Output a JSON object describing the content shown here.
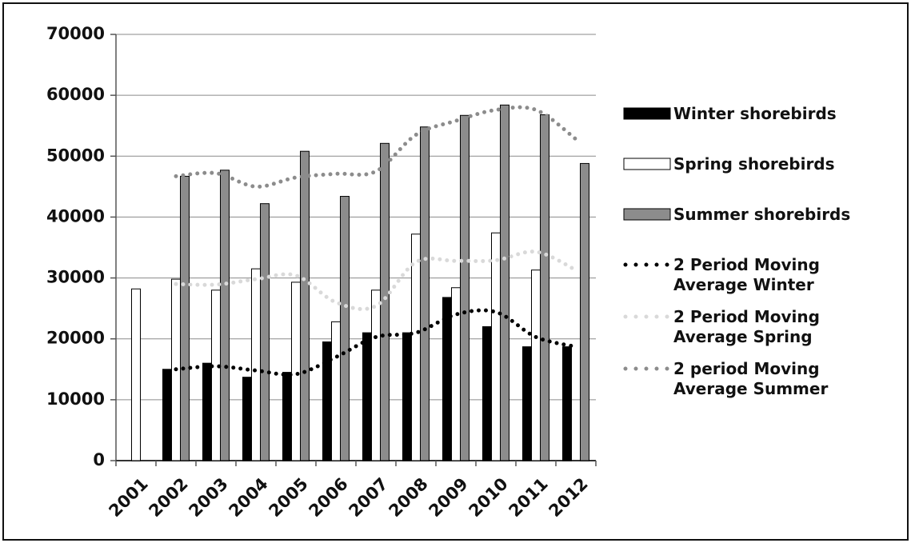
{
  "chart_data": {
    "type": "bar",
    "categories": [
      "2001",
      "2002",
      "2003",
      "2004",
      "2005",
      "2006",
      "2007",
      "2008",
      "2009",
      "2010",
      "2011",
      "2012"
    ],
    "series": [
      {
        "name": "Winter shorebirds",
        "color": "#000000",
        "values": [
          null,
          15000,
          16000,
          13700,
          14500,
          19500,
          21000,
          21000,
          26800,
          22000,
          18700,
          18700
        ]
      },
      {
        "name": "Spring shorebirds",
        "color": "#ffffff",
        "values": [
          28200,
          29800,
          28000,
          31500,
          29300,
          22800,
          28000,
          37200,
          28400,
          37400,
          31300,
          null
        ]
      },
      {
        "name": "Summer shorebirds",
        "color": "#8c8c8c",
        "values": [
          null,
          46700,
          47700,
          42200,
          50800,
          43400,
          52100,
          54800,
          56700,
          58400,
          56800,
          48800
        ]
      },
      {
        "name": "2 Period Moving Average Winter",
        "type": "line",
        "color": "#000000",
        "values": [
          null,
          15000,
          15500,
          14800,
          14200,
          17000,
          20300,
          21000,
          24000,
          24400,
          20300,
          18700
        ]
      },
      {
        "name": "2 Period Moving Average Spring",
        "type": "line",
        "color": "#d9d9d9",
        "values": [
          null,
          29000,
          28900,
          29800,
          30400,
          26000,
          25400,
          32600,
          32800,
          32900,
          34300,
          31300
        ]
      },
      {
        "name": "2 period Moving Average Summer",
        "type": "line",
        "color": "#8c8c8c",
        "values": [
          null,
          46700,
          47200,
          45000,
          46500,
          47100,
          47500,
          53500,
          55800,
          57600,
          57600,
          52800
        ]
      }
    ],
    "ylim": [
      0,
      70000
    ],
    "yticks": [
      0,
      10000,
      20000,
      30000,
      40000,
      50000,
      60000,
      70000
    ],
    "grid": true,
    "legend": "right"
  }
}
